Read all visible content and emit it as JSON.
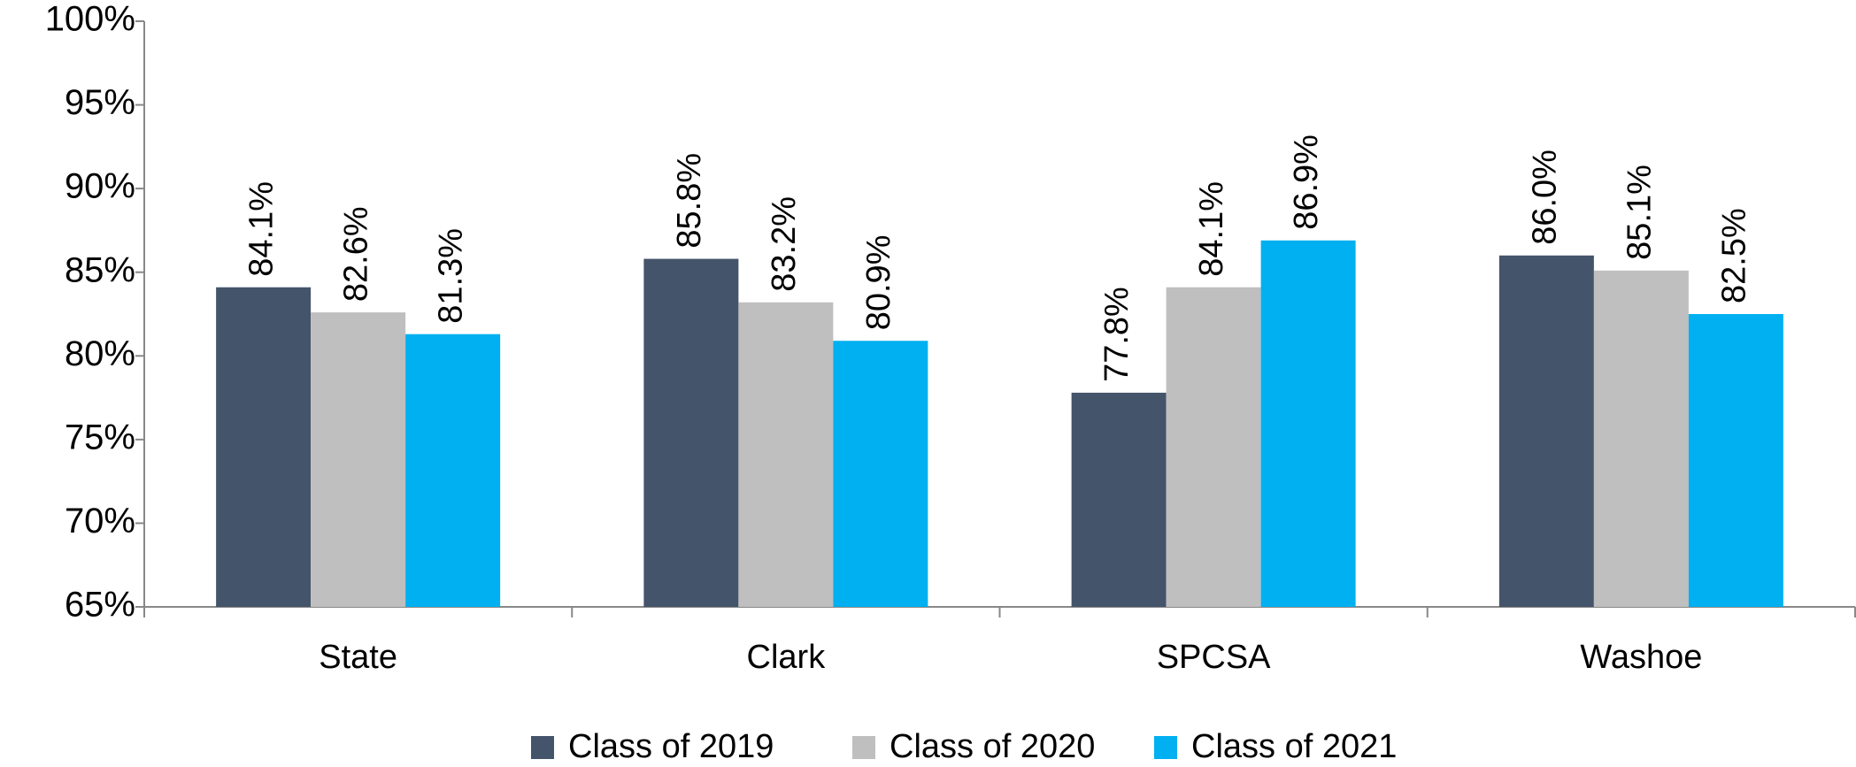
{
  "chart_data": {
    "type": "bar",
    "categories": [
      "State",
      "Clark",
      "SPCSA",
      "Washoe"
    ],
    "series": [
      {
        "name": "Class of 2019",
        "color": "#44546a",
        "values": [
          84.1,
          85.8,
          77.8,
          86.0
        ],
        "value_labels": [
          "84.1%",
          "85.8%",
          "77.8%",
          "86.0%"
        ]
      },
      {
        "name": "Class of 2020",
        "color": "#bfbfbf",
        "values": [
          82.6,
          83.2,
          84.1,
          85.1
        ],
        "value_labels": [
          "82.6%",
          "83.2%",
          "84.1%",
          "85.1%"
        ]
      },
      {
        "name": "Class of 2021",
        "color": "#00b0f0",
        "values": [
          81.3,
          80.9,
          86.9,
          82.5
        ],
        "value_labels": [
          "81.3%",
          "80.9%",
          "86.9%",
          "82.5%"
        ]
      }
    ],
    "ylim": [
      65,
      100
    ],
    "yticks": [
      {
        "value": 65,
        "label": "65%"
      },
      {
        "value": 70,
        "label": "70%"
      },
      {
        "value": 75,
        "label": "75%"
      },
      {
        "value": 80,
        "label": "80%"
      },
      {
        "value": 85,
        "label": "85%"
      },
      {
        "value": 90,
        "label": "90%"
      },
      {
        "value": 95,
        "label": "95%"
      },
      {
        "value": 100,
        "label": "100%"
      }
    ],
    "grid": false,
    "legend": "bottom"
  }
}
